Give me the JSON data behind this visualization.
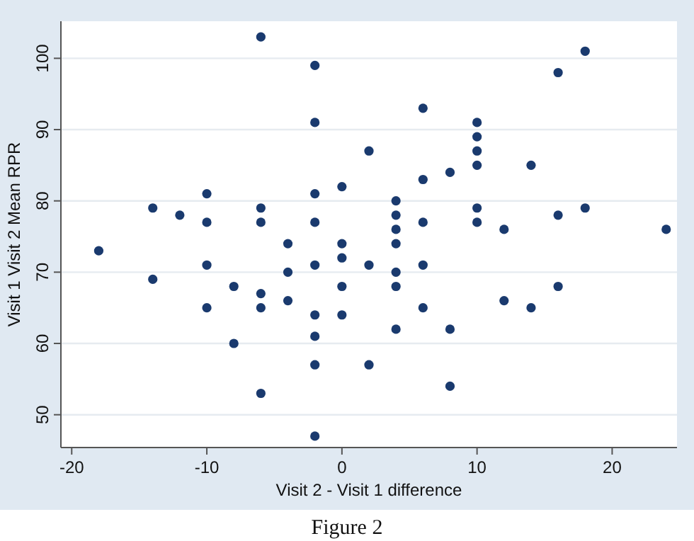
{
  "chart_data": {
    "type": "scatter",
    "xlabel": "Visit 2 - Visit 1 difference",
    "ylabel": "Visit 1 Visit 2 Mean RPR",
    "annotations": [
      "Figure 2"
    ],
    "xlim": [
      -20.8,
      24.8
    ],
    "xticks": [
      -20,
      -10,
      0,
      10,
      20
    ],
    "ylim": [
      45.4,
      105.2
    ],
    "yticks": [
      50,
      60,
      70,
      80,
      90,
      100
    ],
    "grid": "y",
    "marker": "circle",
    "series": [
      {
        "color": "#1a3a6e",
        "x": [
          -18,
          -14,
          -14,
          -12,
          -10,
          -10,
          -10,
          -10,
          -8,
          -8,
          -6,
          -6,
          -6,
          -6,
          -6,
          -6,
          -4,
          -4,
          -4,
          -2,
          -2,
          -2,
          -2,
          -2,
          -2,
          -2,
          -2,
          -2,
          0,
          0,
          0,
          0,
          0,
          2,
          2,
          2,
          4,
          4,
          4,
          4,
          4,
          4,
          4,
          6,
          6,
          6,
          6,
          6,
          8,
          8,
          8,
          10,
          10,
          10,
          10,
          10,
          10,
          12,
          12,
          14,
          14,
          16,
          16,
          16,
          18,
          18,
          24
        ],
        "values": [
          73,
          79,
          69,
          78,
          81,
          77,
          71,
          65,
          68,
          60,
          103,
          79,
          77,
          67,
          65,
          53,
          74,
          70,
          66,
          99,
          91,
          81,
          77,
          71,
          64,
          61,
          57,
          47,
          82,
          74,
          72,
          68,
          64,
          87,
          71,
          57,
          80,
          78,
          76,
          74,
          70,
          68,
          62,
          93,
          83,
          77,
          71,
          65,
          84,
          62,
          54,
          91,
          89,
          87,
          85,
          79,
          77,
          76,
          66,
          85,
          65,
          98,
          78,
          68,
          101,
          79,
          76
        ]
      }
    ]
  }
}
